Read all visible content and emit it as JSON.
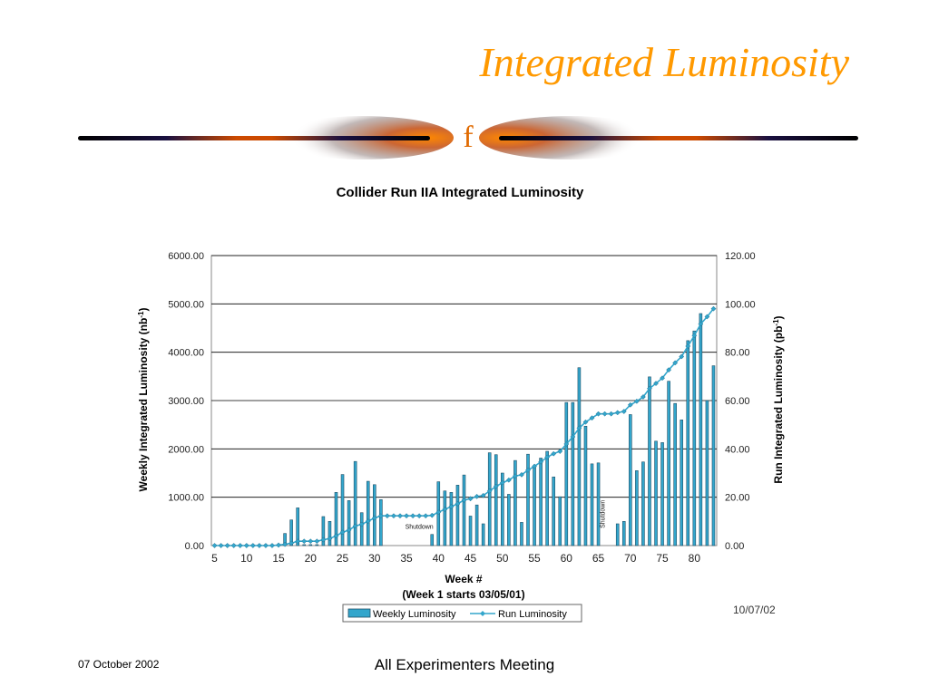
{
  "slide": {
    "title": "Integrated Luminosity",
    "logo_letter": "f",
    "date_stamp": "10/07/02",
    "footer_date": "07 October 2002",
    "footer_meeting": "All Experimenters Meeting"
  },
  "colors": {
    "title": "#ff9900",
    "bar_fill": "#33a6cc",
    "bar_stroke": "#1f4f66",
    "line": "#33a6cc",
    "axis": "#888888",
    "grid": "#000000"
  },
  "chart_data": {
    "type": "bar",
    "title": "Collider Run IIA Integrated Luminosity",
    "xlabel": "Week  #",
    "xlabel_sub": "(Week 1 starts 03/05/01)",
    "ylabel": "Weekly Integrated Luminosity (nb",
    "y2label": "Run Integrated Luminosity (pb",
    "label_superscript": "-1",
    "label_close": ")",
    "xlim": [
      5,
      83
    ],
    "ylim": [
      0,
      6000
    ],
    "y2lim": [
      0,
      120
    ],
    "grid": true,
    "legend_position": "bottom",
    "x_ticks": [
      "5",
      "10",
      "15",
      "20",
      "25",
      "30",
      "35",
      "40",
      "45",
      "50",
      "55",
      "60",
      "65",
      "70",
      "75",
      "80"
    ],
    "y_ticks": [
      "0.00",
      "1000.00",
      "2000.00",
      "3000.00",
      "4000.00",
      "5000.00",
      "6000.00"
    ],
    "y2_ticks": [
      "0.00",
      "20.00",
      "40.00",
      "60.00",
      "80.00",
      "100.00",
      "120.00"
    ],
    "annotations": [
      {
        "text": "Shutdown",
        "x": 37,
        "y": 350,
        "orientation": "horizontal"
      },
      {
        "text": "Shutdown",
        "x": 66,
        "y": 650,
        "orientation": "vertical"
      }
    ],
    "series": [
      {
        "name": "Weekly Luminosity",
        "kind": "bar",
        "axis": "left",
        "x": [
          5,
          6,
          7,
          8,
          9,
          10,
          11,
          12,
          13,
          14,
          15,
          16,
          17,
          18,
          19,
          20,
          21,
          22,
          23,
          24,
          25,
          26,
          27,
          28,
          29,
          30,
          31,
          32,
          33,
          34,
          35,
          36,
          37,
          38,
          39,
          40,
          41,
          42,
          43,
          44,
          45,
          46,
          47,
          48,
          49,
          50,
          51,
          52,
          53,
          54,
          55,
          56,
          57,
          58,
          59,
          60,
          61,
          62,
          63,
          64,
          65,
          66,
          67,
          68,
          69,
          70,
          71,
          72,
          73,
          74,
          75,
          76,
          77,
          78,
          79,
          80,
          81,
          82,
          83
        ],
        "values": [
          20,
          20,
          20,
          20,
          20,
          20,
          20,
          20,
          20,
          20,
          20,
          250,
          530,
          780,
          20,
          20,
          20,
          600,
          500,
          1100,
          1470,
          930,
          1740,
          680,
          1330,
          1260,
          950,
          0,
          0,
          0,
          0,
          0,
          0,
          0,
          230,
          1320,
          1130,
          1100,
          1250,
          1460,
          610,
          840,
          450,
          1920,
          1880,
          1500,
          1060,
          1760,
          480,
          1890,
          1630,
          1810,
          1950,
          1420,
          1010,
          2960,
          2960,
          3680,
          2470,
          1690,
          1710,
          0,
          0,
          450,
          500,
          2710,
          1550,
          1730,
          3490,
          2160,
          2130,
          3400,
          2940,
          2600,
          4240,
          4440,
          4800,
          3000,
          3720
        ]
      },
      {
        "name": "Run Luminosity",
        "kind": "line",
        "axis": "right",
        "x": [
          5,
          6,
          7,
          8,
          9,
          10,
          11,
          12,
          13,
          14,
          15,
          16,
          17,
          18,
          19,
          20,
          21,
          22,
          23,
          24,
          25,
          26,
          27,
          28,
          29,
          30,
          31,
          32,
          33,
          34,
          35,
          36,
          37,
          38,
          39,
          40,
          41,
          42,
          43,
          44,
          45,
          46,
          47,
          48,
          49,
          50,
          51,
          52,
          53,
          54,
          55,
          56,
          57,
          58,
          59,
          60,
          61,
          62,
          63,
          64,
          65,
          66,
          67,
          68,
          69,
          70,
          71,
          72,
          73,
          74,
          75,
          76,
          77,
          78,
          79,
          80,
          81,
          82,
          83
        ],
        "values": [
          0,
          0,
          0,
          0,
          0,
          0,
          0,
          0,
          0,
          0,
          0.2,
          0.5,
          1,
          1.8,
          1.8,
          1.8,
          1.8,
          2.4,
          2.9,
          4,
          5.5,
          6.4,
          8.1,
          8.8,
          10.1,
          11.4,
          12.3,
          12.3,
          12.3,
          12.3,
          12.3,
          12.3,
          12.3,
          12.3,
          12.5,
          13.8,
          15,
          16.1,
          17.3,
          18.8,
          19.4,
          20.3,
          20.7,
          22.6,
          24.5,
          26,
          27.1,
          28.8,
          29.3,
          31.2,
          32.8,
          34.6,
          36.6,
          38,
          39,
          42,
          45,
          48.6,
          51.1,
          52.8,
          54.5,
          54.5,
          54.5,
          55,
          55.5,
          58.2,
          59.7,
          61.5,
          65,
          67.1,
          69.3,
          72.7,
          75.6,
          78.2,
          82.5,
          86.9,
          91.7,
          94.7,
          98
        ]
      }
    ]
  }
}
